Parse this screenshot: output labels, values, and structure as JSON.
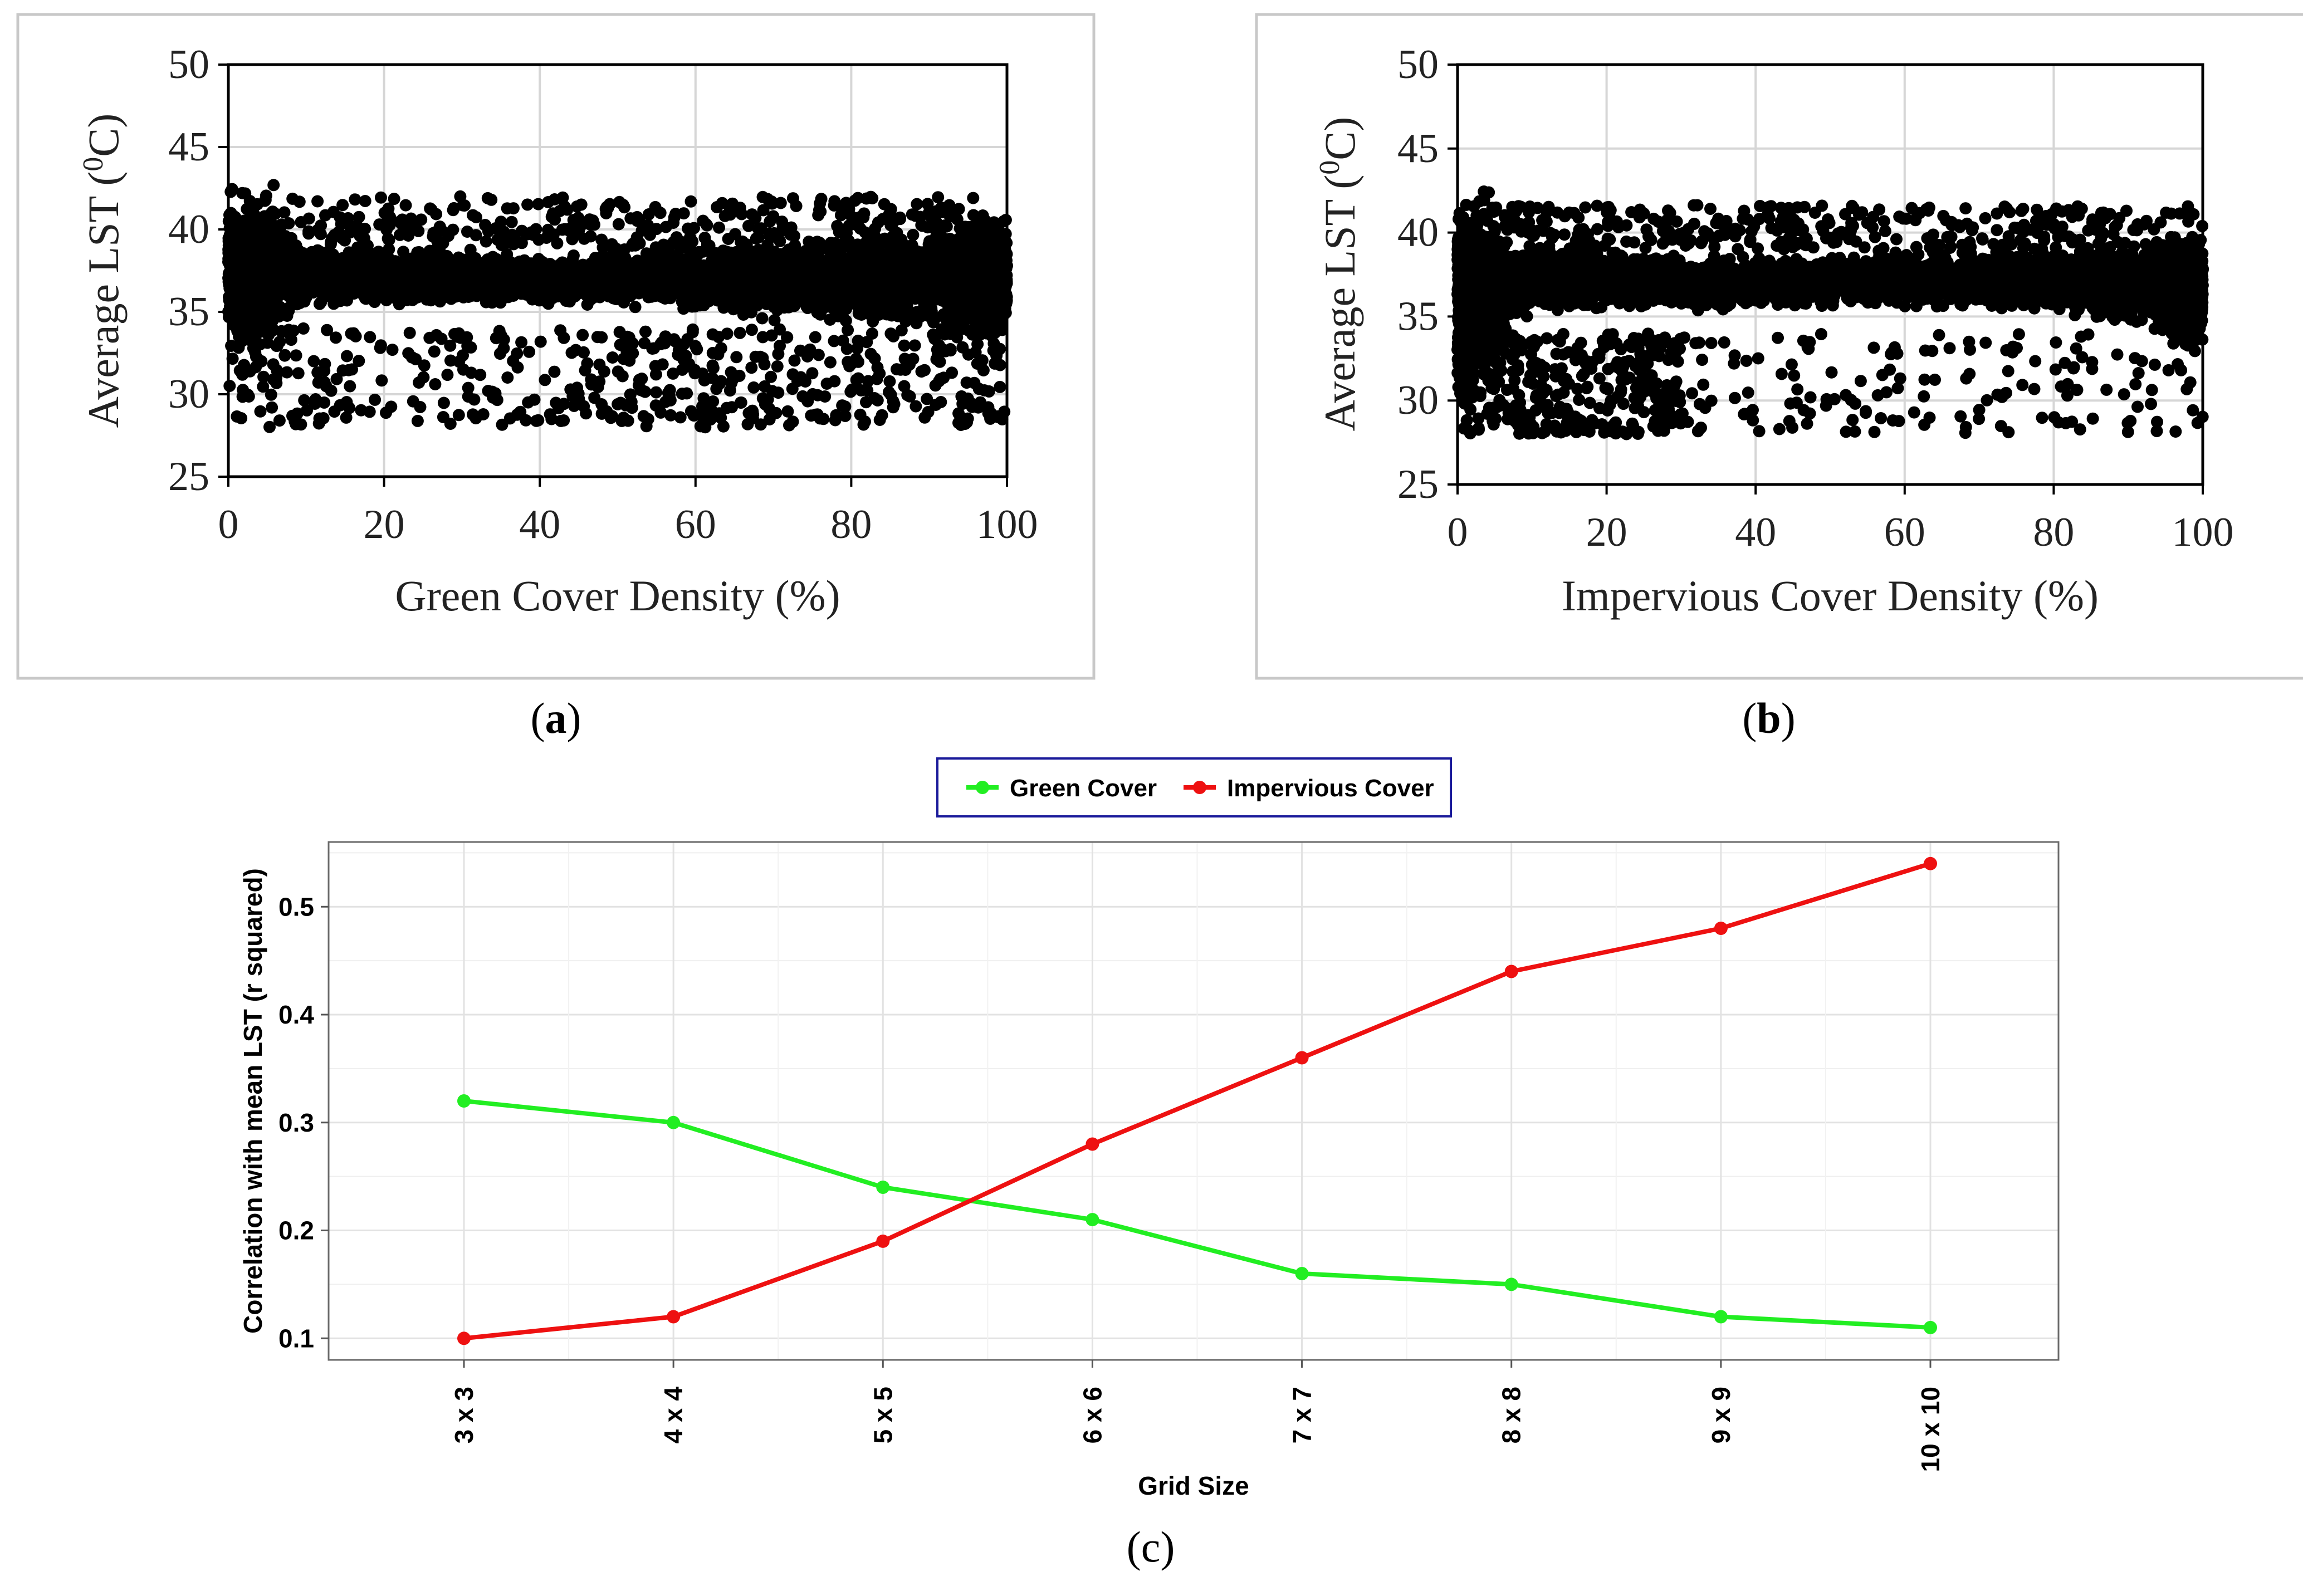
{
  "panel_labels": [
    "a",
    "b",
    "c"
  ],
  "chart_data": [
    {
      "id": "a",
      "type": "scatter",
      "title": "",
      "xlabel": "Green Cover Density (%)",
      "ylabel_parts": [
        "Average LST (",
        "0",
        "C)"
      ],
      "xlim": [
        0,
        100
      ],
      "ylim": [
        25,
        50
      ],
      "xticks": [
        "0",
        "20",
        "40",
        "60",
        "80",
        "100"
      ],
      "yticks": [
        "25",
        "30",
        "35",
        "40",
        "45",
        "50"
      ],
      "grid": true,
      "marker_color": "#000000",
      "point_model": {
        "description": "dense cloud; sampled reproduction of visible distribution",
        "core_band": [
          [
            0,
            34,
            42
          ],
          [
            2,
            32,
            41.5
          ],
          [
            10,
            35,
            39.5
          ],
          [
            40,
            35.5,
            38.5
          ],
          [
            60,
            35,
            39.5
          ],
          [
            80,
            34,
            40
          ],
          [
            100,
            33,
            41
          ]
        ],
        "low_outliers_range": [
          28,
          34
        ],
        "high_outliers_range": [
          39,
          43
        ]
      }
    },
    {
      "id": "b",
      "type": "scatter",
      "title": "",
      "xlabel": "Impervious Cover Density (%)",
      "ylabel_parts": [
        "Average LST (",
        "0",
        "C)"
      ],
      "xlim": [
        0,
        100
      ],
      "ylim": [
        25,
        50
      ],
      "xticks": [
        "0",
        "20",
        "40",
        "60",
        "80",
        "100"
      ],
      "yticks": [
        "25",
        "30",
        "35",
        "40",
        "45",
        "50"
      ],
      "grid": true,
      "marker_color": "#000000",
      "point_model": {
        "description": "dense cloud; sampled reproduction of visible distribution",
        "core_band": [
          [
            0,
            28.5,
            42.5
          ],
          [
            3,
            31,
            41
          ],
          [
            10,
            35,
            39.5
          ],
          [
            40,
            35.5,
            38.5
          ],
          [
            60,
            35.5,
            39
          ],
          [
            80,
            35,
            39.5
          ],
          [
            100,
            33,
            40
          ]
        ],
        "low_outliers_range": [
          28,
          34
        ],
        "high_outliers_range": [
          39,
          42.5
        ]
      }
    },
    {
      "id": "c",
      "type": "line",
      "title": "",
      "xlabel": "Grid Size",
      "ylabel": "Correlation with mean LST (r squared)",
      "categories": [
        "3 x 3",
        "4 x 4",
        "5 x 5",
        "6 x 6",
        "7 x 7",
        "8 x 8",
        "9 x 9",
        "10 x 10"
      ],
      "ylim": [
        0.08,
        0.56
      ],
      "yticks": [
        "0.1",
        "0.2",
        "0.3",
        "0.4",
        "0.5"
      ],
      "grid": true,
      "legend_position": "top-center",
      "series": [
        {
          "name": "Green Cover",
          "color": "#22ee22",
          "values": [
            0.32,
            0.3,
            0.24,
            0.21,
            0.16,
            0.15,
            0.12,
            0.11
          ]
        },
        {
          "name": "Impervious Cover",
          "color": "#ee1111",
          "values": [
            0.1,
            0.12,
            0.19,
            0.28,
            0.36,
            0.44,
            0.48,
            0.54
          ]
        }
      ]
    }
  ]
}
